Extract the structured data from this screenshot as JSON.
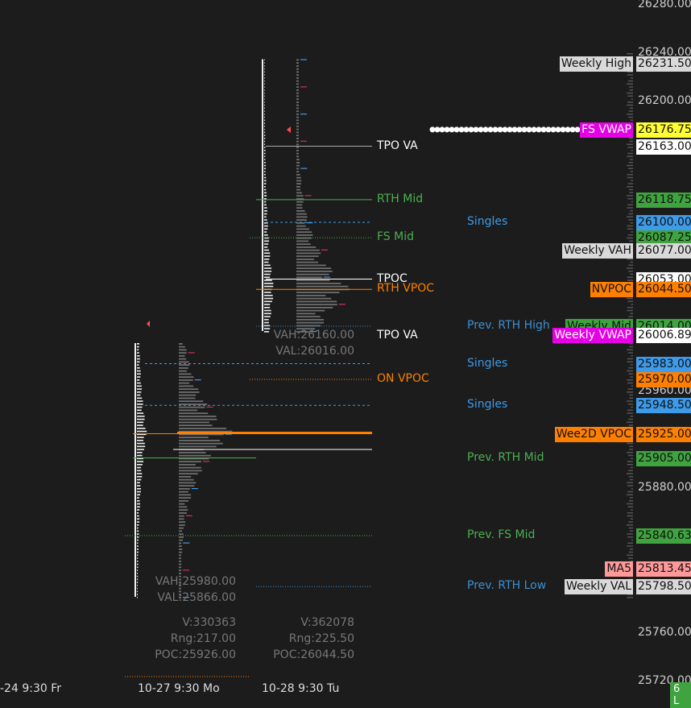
{
  "chart_data": {
    "type": "market-profile",
    "y_axis": {
      "range": [
        25700,
        26290
      ],
      "ticks": [
        "26280.00",
        "26240.00",
        "26200.00",
        "25960.00",
        "25880.00",
        "25760.00",
        "25720.00"
      ]
    },
    "x_axis": {
      "labels": [
        "-24  9:30 Fr",
        "10-27  9:30 Mo",
        "10-28  9:30 Tu"
      ]
    },
    "price_tags": [
      {
        "label": "Weekly High",
        "value": 26231.5,
        "text": "26231.50",
        "bg": "#d9d9d9",
        "fg": "#111111"
      },
      {
        "label": "FS VWAP",
        "value": 26176.75,
        "text": "26176.75",
        "bg": "#ffff33",
        "fg": "#111111",
        "label_bg": "#e600e6",
        "label_fg": "#ffffff"
      },
      {
        "label": "",
        "value": 26163.0,
        "text": "26163.00",
        "bg": "#ffffff",
        "fg": "#111111"
      },
      {
        "label": "",
        "value": 26118.75,
        "text": "26118.75",
        "bg": "#3fa33f",
        "fg": "#111111"
      },
      {
        "label": "",
        "value": 26100.0,
        "text": "26100.00",
        "bg": "#3d9be9",
        "fg": "#111111"
      },
      {
        "label": "",
        "value": 26087.25,
        "text": "26087.25",
        "bg": "#3fa33f",
        "fg": "#111111"
      },
      {
        "label": "Weekly VAH",
        "value": 26077.0,
        "text": "26077.00",
        "bg": "#d9d9d9",
        "fg": "#111111"
      },
      {
        "label": "",
        "value": 26053.0,
        "text": "26053.00",
        "bg": "#ffffff",
        "fg": "#111111"
      },
      {
        "label": "NVPOC",
        "value": 26044.5,
        "text": "26044.50",
        "bg": "#ff8000",
        "fg": "#111111"
      },
      {
        "label": "Weekly Mid",
        "value": 26014.0,
        "text": "26014.00",
        "bg": "#3fa33f",
        "fg": "#111111"
      },
      {
        "label": "Weekly VWAP",
        "value": 26006.89,
        "text": "26006.89",
        "bg": "#ffffff",
        "fg": "#111111",
        "label_bg": "#e600e6",
        "label_fg": "#ffffff"
      },
      {
        "label": "",
        "value": 25983.0,
        "text": "25983.00",
        "bg": "#3d9be9",
        "fg": "#111111"
      },
      {
        "label": "",
        "value": 25970.0,
        "text": "25970.00",
        "bg": "#ff8000",
        "fg": "#111111"
      },
      {
        "label": "",
        "value": 25948.5,
        "text": "25948.50",
        "bg": "#3d9be9",
        "fg": "#111111"
      },
      {
        "label": "Wee2D VPOC",
        "value": 25925.0,
        "text": "25925.00",
        "bg": "#ff8000",
        "fg": "#111111"
      },
      {
        "label": "",
        "value": 25905.0,
        "text": "25905.00",
        "bg": "#3fa33f",
        "fg": "#111111"
      },
      {
        "label": "",
        "value": 25840.63,
        "text": "25840.63",
        "bg": "#3fa33f",
        "fg": "#111111"
      },
      {
        "label": "MA5",
        "value": 25813.45,
        "text": "25813.45",
        "bg": "#ff9999",
        "fg": "#111111",
        "label_bg": "#ff9999",
        "label_fg": "#111111"
      },
      {
        "label": "Weekly VAL",
        "value": 25798.5,
        "text": "25798.50",
        "bg": "#d9d9d9",
        "fg": "#111111"
      }
    ],
    "level_notes": [
      {
        "text": "TPO VA",
        "value": 26163.0,
        "color": "#ffffff",
        "x": 468
      },
      {
        "text": "RTH Mid",
        "value": 26118.75,
        "color": "#4caf50",
        "x": 468
      },
      {
        "text": "Singles",
        "value": 26100.0,
        "color": "#3d9be9",
        "x": 580
      },
      {
        "text": "FS Mid",
        "value": 26087.25,
        "color": "#4caf50",
        "x": 468
      },
      {
        "text": "TPOC",
        "value": 26053.0,
        "color": "#ffffff",
        "x": 468
      },
      {
        "text": "RTH VPOC",
        "value": 26044.5,
        "color": "#ff8000",
        "x": 468
      },
      {
        "text": "Prev. RTH High",
        "value": 26014.0,
        "color": "#3d8fd0",
        "x": 580
      },
      {
        "text": "TPO VA",
        "value": 26006.0,
        "color": "#ffffff",
        "x": 468
      },
      {
        "text": "Singles",
        "value": 25983.0,
        "color": "#3d9be9",
        "x": 580
      },
      {
        "text": "ON VPOC",
        "value": 25970.0,
        "color": "#ff8000",
        "x": 468
      },
      {
        "text": "Singles",
        "value": 25948.5,
        "color": "#3d9be9",
        "x": 580
      },
      {
        "text": "Prev. RTH Mid",
        "value": 25905.0,
        "color": "#4caf50",
        "x": 580
      },
      {
        "text": "Prev. FS Mid",
        "value": 25840.63,
        "color": "#4caf50",
        "x": 580
      },
      {
        "text": "Prev. RTH Low",
        "value": 25798.5,
        "color": "#3d8fd0",
        "x": 580
      }
    ],
    "sessions": [
      {
        "date": "10-27",
        "high": 26000,
        "low": 25790,
        "vah": "VAH:25980.00",
        "val": "VAL:25866.00",
        "volume": "V:330363",
        "range": "Rng:217.00",
        "poc": "POC:25926.00"
      },
      {
        "date": "10-28",
        "high": 26235,
        "low": 26010,
        "vah": "VAH:26160.00",
        "val": "VAL:26016.00",
        "volume": "V:362078",
        "range": "Rng:225.50",
        "poc": "POC:26044.50"
      }
    ],
    "status_badge": "6 L"
  }
}
